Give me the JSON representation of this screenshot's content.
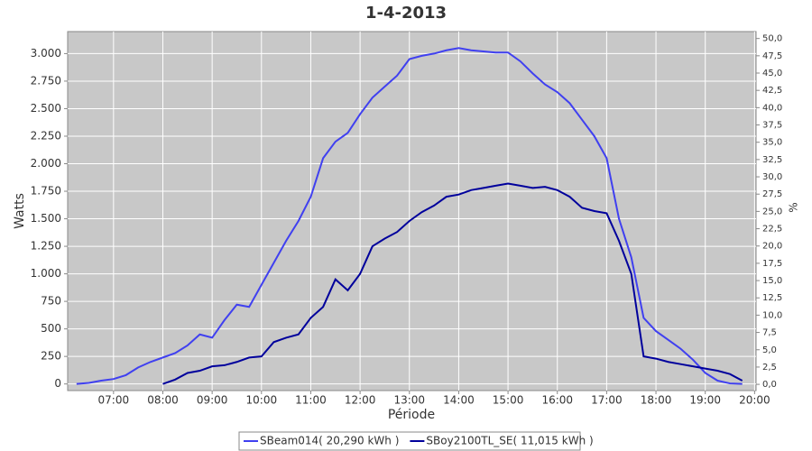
{
  "chart_data": {
    "type": "line",
    "title": "1-4-2013",
    "x_label": "Période",
    "y_label": "Watts",
    "y2_label": "%",
    "x": [
      6.25,
      6.5,
      6.75,
      7.0,
      7.25,
      7.5,
      7.75,
      8.0,
      8.25,
      8.5,
      8.75,
      9.0,
      9.25,
      9.5,
      9.75,
      10.0,
      10.25,
      10.5,
      10.75,
      11.0,
      11.25,
      11.5,
      11.75,
      12.0,
      12.25,
      12.5,
      12.75,
      13.0,
      13.25,
      13.5,
      13.75,
      14.0,
      14.25,
      14.5,
      14.75,
      15.0,
      15.25,
      15.5,
      15.75,
      16.0,
      16.25,
      16.5,
      16.75,
      17.0,
      17.25,
      17.5,
      17.75,
      18.0,
      18.25,
      18.5,
      18.75,
      19.0,
      19.25,
      19.5,
      19.75
    ],
    "series": [
      {
        "name": "SBeam014( 20,290 kWh )",
        "color": "#4040f0",
        "values": [
          0,
          10,
          30,
          45,
          80,
          150,
          200,
          240,
          280,
          350,
          450,
          420,
          580,
          720,
          700,
          900,
          1100,
          1300,
          1480,
          1700,
          2050,
          2200,
          2280,
          2450,
          2600,
          2700,
          2800,
          2950,
          2980,
          3000,
          3030,
          3050,
          3030,
          3020,
          3010,
          3010,
          2930,
          2820,
          2720,
          2650,
          2550,
          2400,
          2250,
          2050,
          1500,
          1150,
          600,
          480,
          400,
          320,
          220,
          100,
          30,
          5,
          0
        ]
      },
      {
        "name": "SBoy2100TL_SE( 11,015 kWh )",
        "color": "#00009c",
        "values": [
          null,
          null,
          null,
          null,
          null,
          null,
          null,
          0,
          40,
          100,
          120,
          160,
          170,
          200,
          240,
          250,
          380,
          420,
          450,
          600,
          700,
          950,
          850,
          1000,
          1250,
          1320,
          1380,
          1480,
          1560,
          1620,
          1700,
          1720,
          1760,
          1780,
          1800,
          1820,
          1800,
          1780,
          1790,
          1760,
          1700,
          1600,
          1570,
          1550,
          1300,
          1000,
          250,
          230,
          200,
          180,
          160,
          140,
          120,
          90,
          30
        ]
      }
    ],
    "xlim": [
      6.07,
      20.03
    ],
    "xticks": [
      {
        "value": 7,
        "label": "07:00"
      },
      {
        "value": 8,
        "label": "08:00"
      },
      {
        "value": 9,
        "label": "09:00"
      },
      {
        "value": 10,
        "label": "10:00"
      },
      {
        "value": 11,
        "label": "11:00"
      },
      {
        "value": 12,
        "label": "12:00"
      },
      {
        "value": 13,
        "label": "13:00"
      },
      {
        "value": 14,
        "label": "14:00"
      },
      {
        "value": 15,
        "label": "15:00"
      },
      {
        "value": 16,
        "label": "16:00"
      },
      {
        "value": 17,
        "label": "17:00"
      },
      {
        "value": 18,
        "label": "18:00"
      },
      {
        "value": 19,
        "label": "19:00"
      },
      {
        "value": 20,
        "label": "20:00"
      }
    ],
    "ylim": [
      -60,
      3200
    ],
    "yticks": [
      0,
      {
        "value": 250,
        "label": "250"
      },
      {
        "value": 500,
        "label": "500"
      },
      {
        "value": 750,
        "label": "750"
      },
      {
        "value": 1000,
        "label": "1.000"
      },
      {
        "value": 1250,
        "label": "1.250"
      },
      {
        "value": 1500,
        "label": "1.500"
      },
      {
        "value": 1750,
        "label": "1.750"
      },
      {
        "value": 2000,
        "label": "2.000"
      },
      {
        "value": 2250,
        "label": "2.250"
      },
      {
        "value": 2500,
        "label": "2.500"
      },
      {
        "value": 2750,
        "label": "2.750"
      },
      {
        "value": 3000,
        "label": "3.000"
      }
    ],
    "y2lim": [
      -0.9,
      51
    ],
    "y2ticks": [
      {
        "value": 0,
        "label": "0,0"
      },
      {
        "value": 2.5,
        "label": "2,5"
      },
      {
        "value": 5,
        "label": "5,0"
      },
      {
        "value": 7.5,
        "label": "7,5"
      },
      {
        "value": 10,
        "label": "10,0"
      },
      {
        "value": 12.5,
        "label": "12,5"
      },
      {
        "value": 15,
        "label": "15,0"
      },
      {
        "value": 17.5,
        "label": "17,5"
      },
      {
        "value": 20,
        "label": "20,0"
      },
      {
        "value": 22.5,
        "label": "22,5"
      },
      {
        "value": 25,
        "label": "25,0"
      },
      {
        "value": 27.5,
        "label": "27,5"
      },
      {
        "value": 30,
        "label": "30,0"
      },
      {
        "value": 32.5,
        "label": "32,5"
      },
      {
        "value": 35,
        "label": "35,0"
      },
      {
        "value": 37.5,
        "label": "37,5"
      },
      {
        "value": 40,
        "label": "40,0"
      },
      {
        "value": 42.5,
        "label": "42,5"
      },
      {
        "value": 45,
        "label": "45,0"
      },
      {
        "value": 47.5,
        "label": "47,5"
      },
      {
        "value": 50,
        "label": "50,0"
      }
    ],
    "grid": true
  }
}
